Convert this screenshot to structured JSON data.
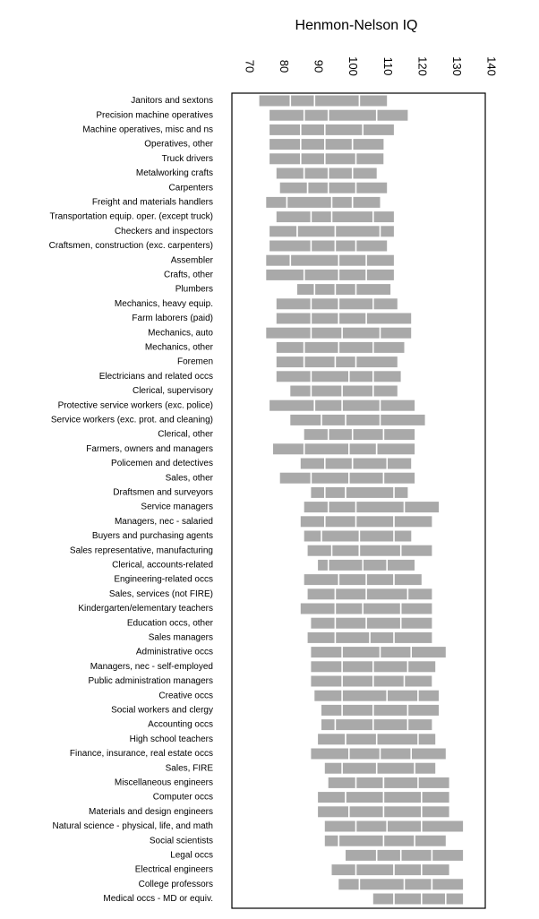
{
  "chart_data": {
    "type": "bar",
    "subtype": "range-bar (stacked quantile segments)",
    "title": "Henmon-Nelson IQ",
    "xlabel": "",
    "ylabel": "",
    "xlim": [
      70,
      140
    ],
    "xticks": [
      70,
      80,
      90,
      100,
      110,
      120,
      130,
      140
    ],
    "x_tick_position": "top",
    "x_tick_label_rotation": "90deg",
    "grid": false,
    "legend": "none",
    "bar_color": "#a9a9a9",
    "categories": [
      "Janitors and sextons",
      "Precision machine operatives",
      "Machine operatives, misc and ns",
      "Operatives, other",
      "Truck drivers",
      "Metalworking crafts",
      "Carpenters",
      "Freight and materials handlers",
      "Transportation equip. oper. (except truck)",
      "Checkers and inspectors",
      "Craftsmen, construction (exc. carpenters)",
      "Assembler",
      "Crafts, other",
      "Plumbers",
      "Mechanics, heavy equip.",
      "Farm laborers (paid)",
      "Mechanics, auto",
      "Mechanics, other",
      "Foremen",
      "Electricians and related occs",
      "Clerical, supervisory",
      "Protective service workers (exc. police)",
      "Service workers (exc. prot. and cleaning)",
      "Clerical, other",
      "Farmers, owners and managers",
      "Policemen and detectives",
      "Sales, other",
      "Draftsmen and surveyors",
      "Service managers",
      "Managers, nec - salaried",
      "Buyers and purchasing agents",
      "Sales representative, manufacturing",
      "Clerical, accounts-related",
      "Engineering-related occs",
      "Sales, services (not FIRE)",
      "Kindergarten/elementary  teachers",
      "Education occs, other",
      "Sales managers",
      "Administrative occs",
      "Managers, nec - self-employed",
      "Public administration managers",
      "Creative occs",
      "Social workers and clergy",
      "Accounting occs",
      "High school teachers",
      "Finance, insurance, real estate occs",
      "Sales, FIRE",
      "Miscellaneous engineers",
      "Computer occs",
      "Materials and design engineers",
      "Natural science - physical, life, and math",
      "Social scientists",
      "Legal occs",
      "Electrical engineers",
      "College professors",
      "Medical occs - MD or equiv."
    ],
    "quantile_breaks": [
      [
        73,
        82,
        89,
        102,
        110
      ],
      [
        76,
        86,
        93,
        107,
        116
      ],
      [
        76,
        85,
        92,
        103,
        112
      ],
      [
        76,
        85,
        92,
        100,
        109
      ],
      [
        76,
        85,
        92,
        101,
        109
      ],
      [
        78,
        86,
        93,
        100,
        107
      ],
      [
        79,
        87,
        93,
        101,
        110
      ],
      [
        75,
        81,
        94,
        100,
        108
      ],
      [
        78,
        88,
        94,
        106,
        112
      ],
      [
        76,
        84,
        95,
        108,
        112
      ],
      [
        76,
        88,
        95,
        101,
        110
      ],
      [
        75,
        82,
        96,
        104,
        112
      ],
      [
        75,
        86,
        96,
        104,
        112
      ],
      [
        84,
        89,
        95,
        101,
        111
      ],
      [
        78,
        88,
        96,
        106,
        113
      ],
      [
        78,
        88,
        96,
        104,
        117
      ],
      [
        75,
        88,
        97,
        108,
        117
      ],
      [
        78,
        86,
        96,
        106,
        115
      ],
      [
        78,
        86,
        95,
        101,
        113
      ],
      [
        78,
        88,
        99,
        106,
        114
      ],
      [
        82,
        88,
        97,
        106,
        113
      ],
      [
        76,
        89,
        97,
        108,
        118
      ],
      [
        82,
        91,
        98,
        108,
        121
      ],
      [
        86,
        93,
        100,
        109,
        118
      ],
      [
        77,
        86,
        99,
        107,
        118
      ],
      [
        85,
        92,
        100,
        110,
        117
      ],
      [
        79,
        88,
        99,
        109,
        118
      ],
      [
        88,
        92,
        98,
        112,
        116
      ],
      [
        86,
        93,
        101,
        115,
        125
      ],
      [
        85,
        92,
        101,
        112,
        123
      ],
      [
        86,
        91,
        102,
        112,
        117
      ],
      [
        87,
        94,
        102,
        114,
        123
      ],
      [
        90,
        93,
        103,
        110,
        118
      ],
      [
        86,
        96,
        104,
        112,
        120
      ],
      [
        87,
        95,
        104,
        116,
        123
      ],
      [
        85,
        95,
        103,
        114,
        123
      ],
      [
        88,
        95,
        104,
        114,
        123
      ],
      [
        87,
        95,
        105,
        112,
        123
      ],
      [
        88,
        97,
        108,
        117,
        127
      ],
      [
        88,
        97,
        106,
        116,
        124
      ],
      [
        88,
        97,
        106,
        115,
        123
      ],
      [
        89,
        97,
        110,
        119,
        125
      ],
      [
        91,
        97,
        106,
        116,
        125
      ],
      [
        91,
        95,
        106,
        116,
        123
      ],
      [
        90,
        98,
        107,
        119,
        124
      ],
      [
        88,
        99,
        108,
        117,
        127
      ],
      [
        92,
        97,
        107,
        118,
        124
      ],
      [
        93,
        101,
        109,
        119,
        128
      ],
      [
        90,
        98,
        109,
        120,
        128
      ],
      [
        90,
        99,
        109,
        120,
        128
      ],
      [
        92,
        101,
        110,
        120,
        132
      ],
      [
        92,
        96,
        109,
        118,
        127
      ],
      [
        98,
        107,
        114,
        123,
        132
      ],
      [
        94,
        101,
        112,
        120,
        128
      ],
      [
        96,
        102,
        115,
        123,
        132
      ],
      [
        106,
        112,
        120,
        127,
        132
      ]
    ]
  }
}
